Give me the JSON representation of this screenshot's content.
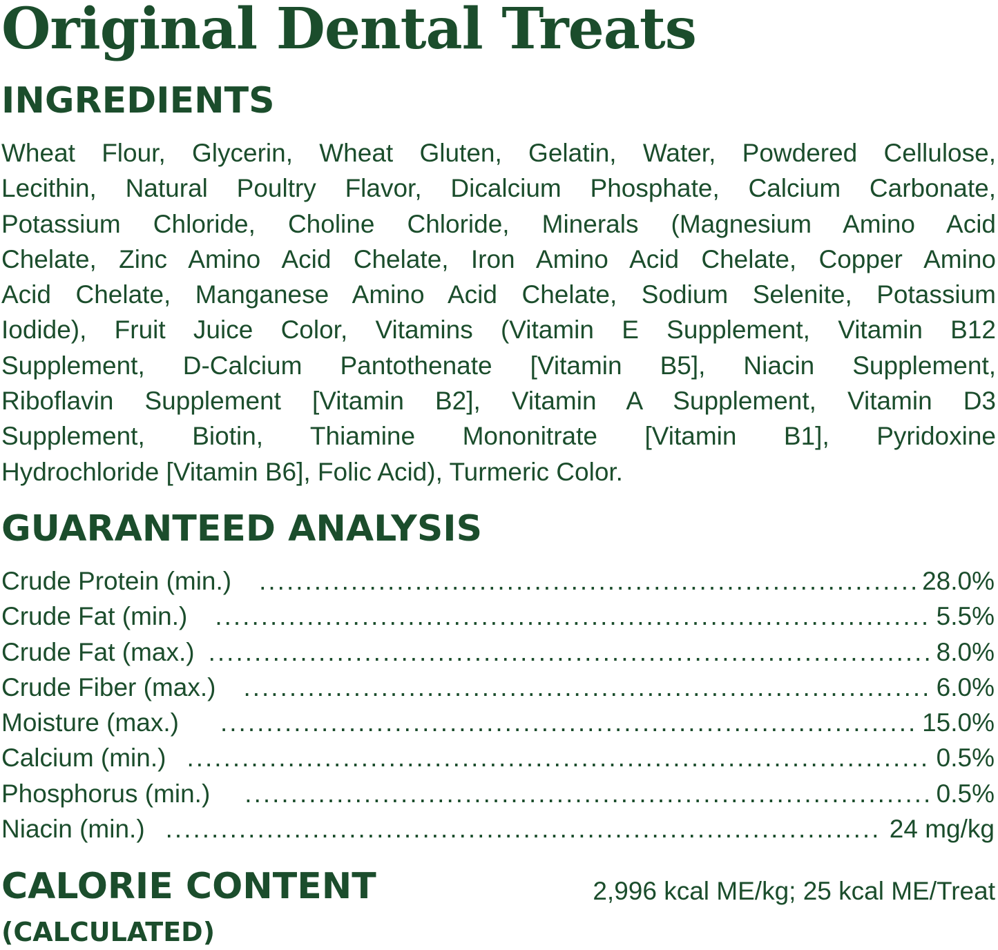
{
  "title": "Original Dental Treats",
  "accent_color": "#1b4d2c",
  "ingredients": {
    "heading": "INGREDIENTS",
    "lines": [
      "Wheat Flour, Glycerin, Wheat Gluten, Gelatin, Water, Powdered Cellulose,",
      "Lecithin, Natural Poultry Flavor, Dicalcium Phosphate, Calcium Carbonate,",
      "Potassium Chloride, Choline Chloride, Minerals (Magnesium Amino Acid",
      "Chelate, Zinc Amino Acid Chelate, Iron Amino Acid Chelate, Copper Amino",
      "Acid Chelate, Manganese Amino Acid Chelate, Sodium Selenite, Potassium",
      "Iodide), Fruit Juice Color, Vitamins (Vitamin E Supplement, Vitamin B12",
      "Supplement, D-Calcium Pantothenate [Vitamin B5], Niacin Supplement,",
      "Riboflavin Supplement [Vitamin B2], Vitamin A Supplement, Vitamin D3",
      "Supplement, Biotin, Thiamine Mononitrate [Vitamin B1], Pyridoxine",
      "Hydrochloride [Vitamin B6], Folic Acid), Turmeric Color."
    ]
  },
  "analysis": {
    "heading": "GUARANTEED ANALYSIS",
    "rows": [
      {
        "label": "Crude Protein (min.)",
        "value": "28.0%"
      },
      {
        "label": "Crude Fat (min.)",
        "value": "5.5%"
      },
      {
        "label": "Crude Fat (max.)",
        "value": "8.0%"
      },
      {
        "label": "Crude Fiber (max.)",
        "value": "6.0%"
      },
      {
        "label": "Moisture (max.)",
        "value": "15.0%"
      },
      {
        "label": "Calcium (min.)",
        "value": "0.5%"
      },
      {
        "label": "Phosphorus (min.)",
        "value": "0.5%"
      },
      {
        "label": "Niacin (min.)",
        "value": "24 mg/kg"
      }
    ]
  },
  "calorie": {
    "heading": "CALORIE CONTENT",
    "subheading": "(CALCULATED)",
    "value": "2,996 kcal ME/kg; 25 kcal ME/Treat"
  }
}
